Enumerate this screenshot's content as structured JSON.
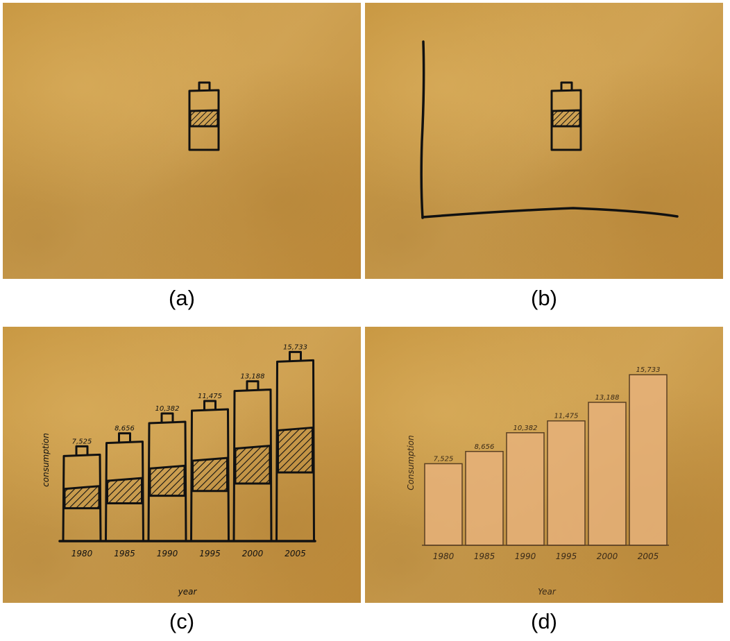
{
  "panels": [
    {
      "caption": "(a)"
    },
    {
      "caption": "(b)"
    },
    {
      "caption": "(c)"
    },
    {
      "caption": "(d)"
    }
  ],
  "colors": {
    "paper": "#c99a48",
    "ink": "#111111",
    "bar_fill": "#e6b27a",
    "bar_stroke": "#5a3f22"
  },
  "chart_data": [
    {
      "panel": "c",
      "type": "bar",
      "style": "sketched battery-shaped bars with hatched band",
      "categories": [
        "1980",
        "1985",
        "1990",
        "1995",
        "2000",
        "2005"
      ],
      "values": [
        7525,
        8656,
        10382,
        11475,
        13188,
        15733
      ],
      "data_labels": [
        "7,525",
        "8,656",
        "10,382",
        "11,475",
        "13,188",
        "15,733"
      ],
      "xlabel": "year",
      "ylabel": "consumption",
      "ylim": [
        0,
        16000
      ]
    },
    {
      "panel": "d",
      "type": "bar",
      "categories": [
        "1980",
        "1985",
        "1990",
        "1995",
        "2000",
        "2005"
      ],
      "values": [
        7525,
        8656,
        10382,
        11475,
        13188,
        15733
      ],
      "data_labels": [
        "7,525",
        "8,656",
        "10,382",
        "11,475",
        "13,188",
        "15,733"
      ],
      "xlabel": "Year",
      "ylabel": "Consumption",
      "ylim": [
        0,
        16000
      ]
    }
  ]
}
